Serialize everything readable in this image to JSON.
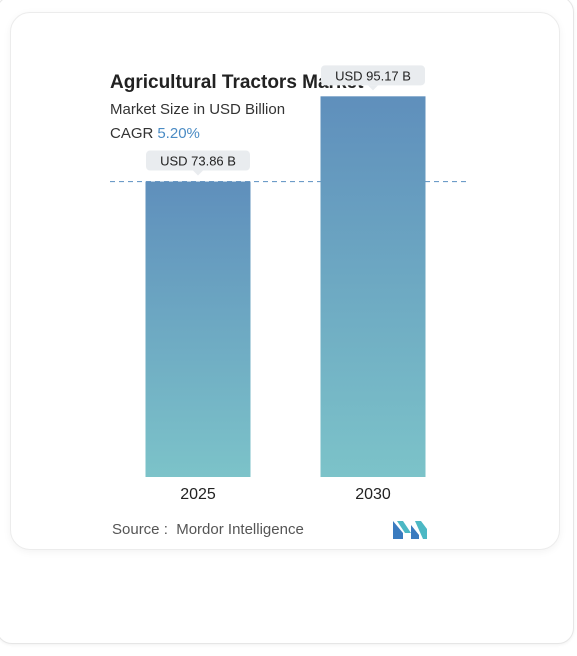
{
  "chart_data": {
    "type": "bar",
    "title": "Agricultural Tractors Market",
    "subtitle": "Market Size in USD Billion",
    "cagr_label": "CAGR",
    "cagr_value": "5.20%",
    "categories": [
      "2025",
      "2030"
    ],
    "values": [
      73.86,
      95.17
    ],
    "value_labels": [
      "USD 73.86 B",
      "USD 95.17 B"
    ],
    "ylim": [
      0,
      100
    ],
    "reference_line_value": 73.86,
    "grid": false,
    "colors": {
      "bar_top": "#5f8fbc",
      "bar_bottom": "#7cc3c9",
      "dashed_line": "#6d9cc8",
      "label_bg": "#e9ecef"
    }
  },
  "source": {
    "label": "Source :",
    "text": "Mordor Intelligence"
  },
  "logo": {
    "icon": "mordor-intelligence-logo-icon",
    "color_left": "#3a7bbf",
    "color_right": "#4cb8c4"
  }
}
